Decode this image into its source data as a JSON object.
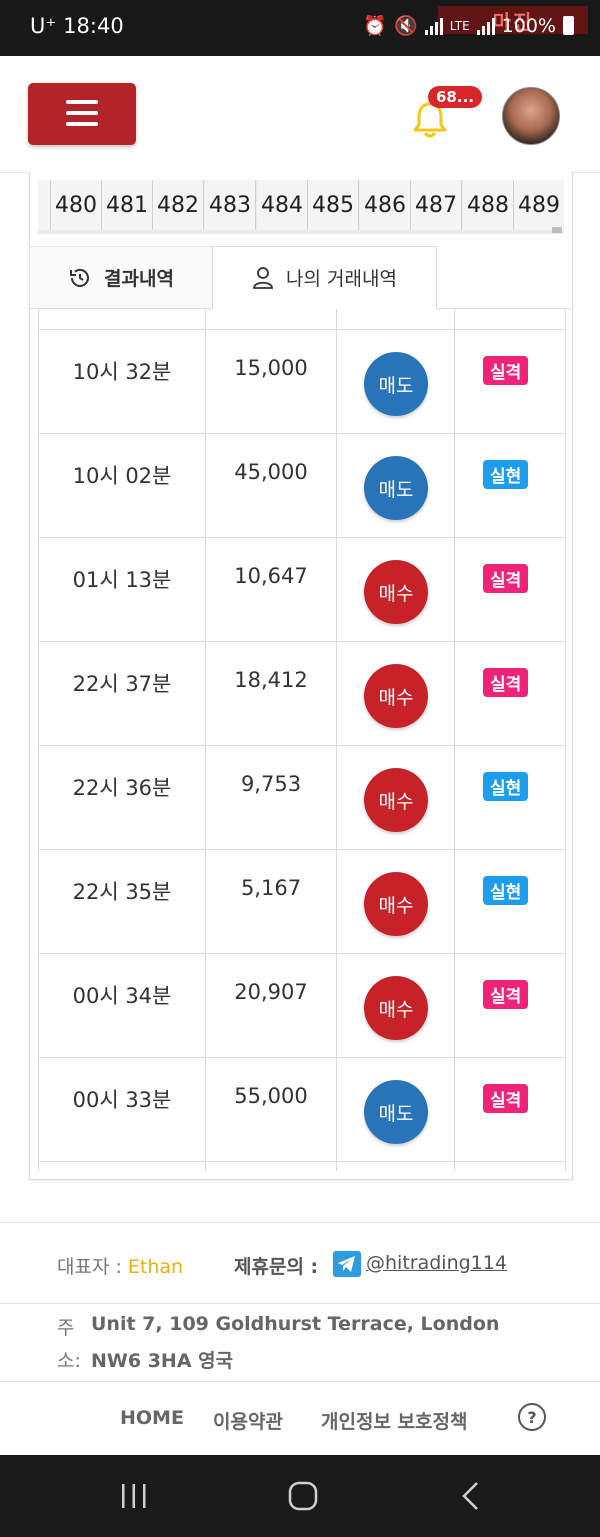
{
  "status_bar": {
    "carrier": "U⁺",
    "time": "18:40",
    "network": "LTE",
    "battery": "100%",
    "watermark": "마진"
  },
  "header": {
    "notification_count": "68..."
  },
  "rounds": {
    "partial": "9",
    "numbers": [
      "480",
      "481",
      "482",
      "483",
      "484",
      "485",
      "486",
      "487",
      "488",
      "489"
    ]
  },
  "tabs": {
    "results": "결과내역",
    "my_trades": "나의 거래내역"
  },
  "trades": [
    {
      "time": "10시 32분",
      "amount": "15,000",
      "side": "매도",
      "side_type": "sell",
      "result": "실격",
      "result_type": "fail"
    },
    {
      "time": "10시 02분",
      "amount": "45,000",
      "side": "매도",
      "side_type": "sell",
      "result": "실현",
      "result_type": "win"
    },
    {
      "time": "01시 13분",
      "amount": "10,647",
      "side": "매수",
      "side_type": "buy",
      "result": "실격",
      "result_type": "fail"
    },
    {
      "time": "22시 37분",
      "amount": "18,412",
      "side": "매수",
      "side_type": "buy",
      "result": "실격",
      "result_type": "fail"
    },
    {
      "time": "22시 36분",
      "amount": "9,753",
      "side": "매수",
      "side_type": "buy",
      "result": "실현",
      "result_type": "win"
    },
    {
      "time": "22시 35분",
      "amount": "5,167",
      "side": "매수",
      "side_type": "buy",
      "result": "실현",
      "result_type": "win"
    },
    {
      "time": "00시 34분",
      "amount": "20,907",
      "side": "매수",
      "side_type": "buy",
      "result": "실격",
      "result_type": "fail"
    },
    {
      "time": "00시 33분",
      "amount": "55,000",
      "side": "매도",
      "side_type": "sell",
      "result": "실격",
      "result_type": "fail"
    }
  ],
  "footer": {
    "rep_label": "대표자 : ",
    "rep_name": "Ethan",
    "contact_label": "제휴문의 : ",
    "contact_handle": "@hitrading114",
    "addr_label_1": "주",
    "addr_label_2": "소:",
    "addr_line_1": "Unit 7, 109 Goldhurst Terrace, London",
    "addr_line_2": "NW6 3HA 영국",
    "links": {
      "home": "HOME",
      "terms": "이용약관",
      "privacy": "개인정보 보호정책",
      "help": "?"
    }
  },
  "colors": {
    "brand_red": "#b3232a",
    "sell_blue": "#2874b8",
    "buy_red": "#c62228",
    "fail_pink": "#f0237a",
    "win_blue": "#1f9ded",
    "rep_name_yellow": "#e8b10a"
  },
  "icons": [
    "menu-icon",
    "bell-icon",
    "history-icon",
    "user-icon",
    "telegram-icon",
    "help-icon",
    "recent-apps-icon",
    "home-nav-icon",
    "back-nav-icon"
  ]
}
